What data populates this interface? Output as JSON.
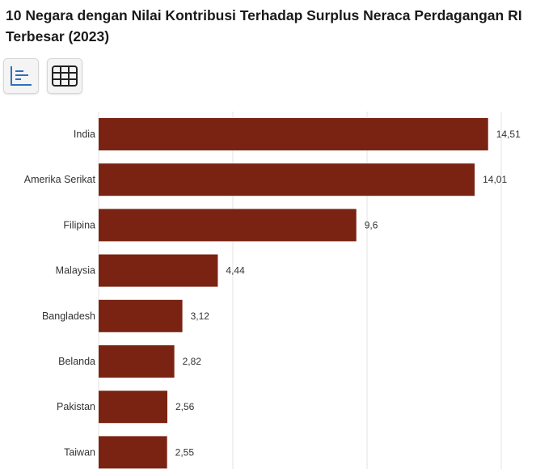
{
  "title": "10 Negara dengan Nilai Kontribusi Terhadap Surplus Neraca Perdagangan RI Terbesar (2023)",
  "toolbar": [
    {
      "name": "chart-view-button",
      "icon": "bar-chart-icon"
    },
    {
      "name": "table-view-button",
      "icon": "table-grid-icon"
    }
  ],
  "colors": {
    "bar": "#7a2313",
    "grid": "#e3e3e3",
    "accent": "#2e6fc0"
  },
  "chart_data": {
    "type": "bar",
    "orientation": "horizontal",
    "categories": [
      "India",
      "Amerika Serikat",
      "Filipina",
      "Malaysia",
      "Bangladesh",
      "Belanda",
      "Pakistan",
      "Taiwan"
    ],
    "values": [
      14.51,
      14.01,
      9.6,
      4.44,
      3.12,
      2.82,
      2.56,
      2.55
    ],
    "value_labels": [
      "14,51",
      "14,01",
      "9,6",
      "4,44",
      "3,12",
      "2,82",
      "2,56",
      "2,55"
    ],
    "xlim": [
      0,
      15
    ],
    "grid": true
  }
}
